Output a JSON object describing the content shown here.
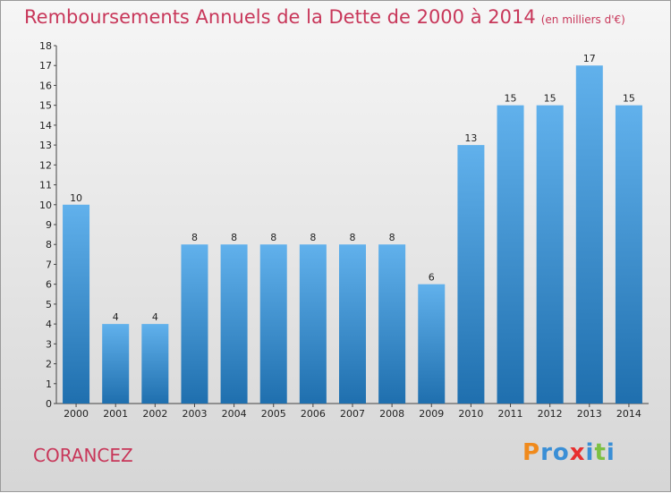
{
  "header": {
    "title": "Remboursements Annuels de la Dette de 2000 à 2014",
    "unit_note": "(en milliers d'€)"
  },
  "footer": {
    "city": "CORANCEZ",
    "logo": "Proxiti"
  },
  "colors": {
    "title": "#c8375a",
    "bar_top": "#61b1ec",
    "bar_bottom": "#1f6fae",
    "logo": [
      "#f08a1c",
      "#3a8fd6",
      "#3a8fd6",
      "#e83030",
      "#3a8fd6",
      "#7cc043",
      "#3a8fd6"
    ]
  },
  "chart_data": {
    "type": "bar",
    "title": "Remboursements Annuels de la Dette de 2000 à 2014",
    "subtitle": "(en milliers d'€)",
    "xlabel": "",
    "ylabel": "",
    "categories": [
      "2000",
      "2001",
      "2002",
      "2003",
      "2004",
      "2005",
      "2006",
      "2007",
      "2008",
      "2009",
      "2010",
      "2011",
      "2012",
      "2013",
      "2014"
    ],
    "values": [
      10,
      4,
      4,
      8,
      8,
      8,
      8,
      8,
      8,
      6,
      13,
      15,
      15,
      17,
      15
    ],
    "ylim": [
      0,
      18
    ],
    "yticks": [
      0,
      1,
      2,
      3,
      4,
      5,
      6,
      7,
      8,
      9,
      10,
      11,
      12,
      13,
      14,
      15,
      16,
      17,
      18
    ],
    "grid": false,
    "legend": "none",
    "data_labels": true
  }
}
